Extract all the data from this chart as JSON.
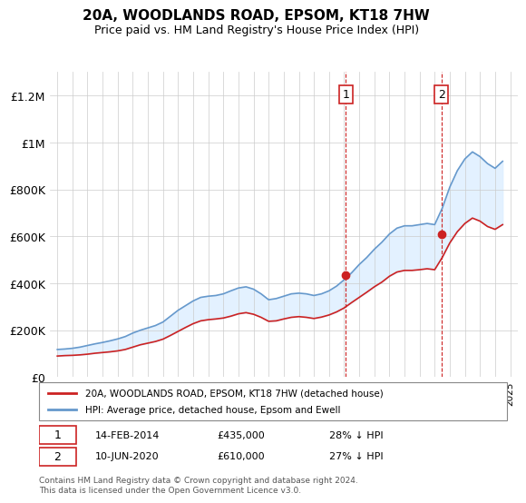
{
  "title": "20A, WOODLANDS ROAD, EPSOM, KT18 7HW",
  "subtitle": "Price paid vs. HM Land Registry's House Price Index (HPI)",
  "xlabel": "",
  "ylabel": "",
  "ylim": [
    0,
    1300000
  ],
  "yticks": [
    0,
    200000,
    400000,
    600000,
    800000,
    1000000,
    1200000
  ],
  "ytick_labels": [
    "£0",
    "£200K",
    "£400K",
    "£600K",
    "£800K",
    "£1M",
    "£1.2M"
  ],
  "hpi_color": "#6699cc",
  "price_color": "#cc2222",
  "shade_color": "#ddeeff",
  "grid_color": "#cccccc",
  "bg_color": "#ffffff",
  "transaction1_date": "14-FEB-2014",
  "transaction1_price": 435000,
  "transaction1_note": "28% ↓ HPI",
  "transaction1_year": 2014.12,
  "transaction2_date": "10-JUN-2020",
  "transaction2_price": 610000,
  "transaction2_note": "27% ↓ HPI",
  "transaction2_year": 2020.44,
  "legend_line1": "20A, WOODLANDS ROAD, EPSOM, KT18 7HW (detached house)",
  "legend_line2": "HPI: Average price, detached house, Epsom and Ewell",
  "footer": "Contains HM Land Registry data © Crown copyright and database right 2024.\nThis data is licensed under the Open Government Licence v3.0.",
  "hpi_x": [
    1995,
    1995.5,
    1996,
    1996.5,
    1997,
    1997.5,
    1998,
    1998.5,
    1999,
    1999.5,
    2000,
    2000.5,
    2001,
    2001.5,
    2002,
    2002.5,
    2003,
    2003.5,
    2004,
    2004.5,
    2005,
    2005.5,
    2006,
    2006.5,
    2007,
    2007.5,
    2008,
    2008.5,
    2009,
    2009.5,
    2010,
    2010.5,
    2011,
    2011.5,
    2012,
    2012.5,
    2013,
    2013.5,
    2014,
    2014.5,
    2015,
    2015.5,
    2016,
    2016.5,
    2017,
    2017.5,
    2018,
    2018.5,
    2019,
    2019.5,
    2020,
    2020.5,
    2021,
    2021.5,
    2022,
    2022.5,
    2023,
    2023.5,
    2024,
    2024.5
  ],
  "hpi_y": [
    118000,
    120000,
    123000,
    128000,
    135000,
    142000,
    148000,
    155000,
    163000,
    173000,
    188000,
    200000,
    210000,
    220000,
    235000,
    260000,
    285000,
    305000,
    325000,
    340000,
    345000,
    348000,
    355000,
    368000,
    380000,
    385000,
    375000,
    355000,
    330000,
    335000,
    345000,
    355000,
    358000,
    355000,
    348000,
    355000,
    368000,
    388000,
    415000,
    445000,
    480000,
    510000,
    545000,
    575000,
    610000,
    635000,
    645000,
    645000,
    650000,
    655000,
    650000,
    720000,
    810000,
    880000,
    930000,
    960000,
    940000,
    910000,
    890000,
    920000
  ],
  "price_x": [
    1995,
    1995.5,
    1996,
    1996.5,
    1997,
    1997.5,
    1998,
    1998.5,
    1999,
    1999.5,
    2000,
    2000.5,
    2001,
    2001.5,
    2002,
    2002.5,
    2003,
    2003.5,
    2004,
    2004.5,
    2005,
    2005.5,
    2006,
    2006.5,
    2007,
    2007.5,
    2008,
    2008.5,
    2009,
    2009.5,
    2010,
    2010.5,
    2011,
    2011.5,
    2012,
    2012.5,
    2013,
    2013.5,
    2014,
    2014.5,
    2015,
    2015.5,
    2016,
    2016.5,
    2017,
    2017.5,
    2018,
    2018.5,
    2019,
    2019.5,
    2020,
    2020.5,
    2021,
    2021.5,
    2022,
    2022.5,
    2023,
    2023.5,
    2024,
    2024.5
  ],
  "price_y": [
    90000,
    92000,
    93000,
    95000,
    98000,
    102000,
    105000,
    108000,
    112000,
    118000,
    128000,
    138000,
    145000,
    152000,
    162000,
    178000,
    195000,
    212000,
    228000,
    240000,
    245000,
    248000,
    252000,
    260000,
    270000,
    275000,
    268000,
    255000,
    238000,
    240000,
    248000,
    255000,
    258000,
    255000,
    250000,
    256000,
    265000,
    278000,
    295000,
    318000,
    340000,
    362000,
    385000,
    405000,
    430000,
    448000,
    455000,
    455000,
    458000,
    462000,
    458000,
    510000,
    572000,
    620000,
    655000,
    678000,
    665000,
    642000,
    630000,
    650000
  ]
}
